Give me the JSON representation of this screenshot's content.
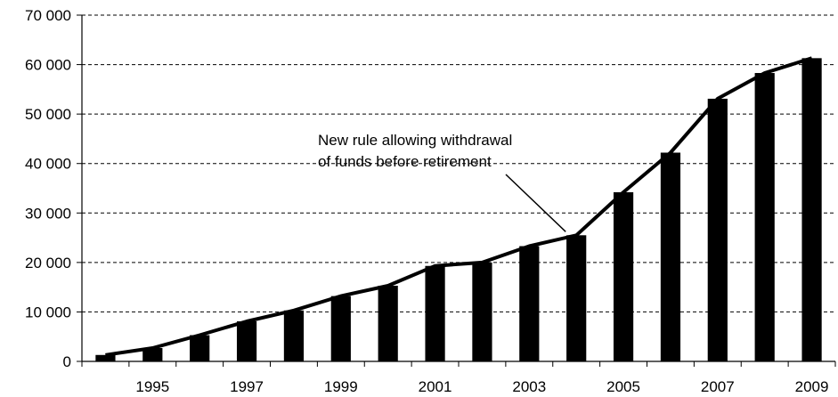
{
  "chart_data": {
    "type": "bar",
    "title": "",
    "xlabel": "",
    "ylabel": "",
    "ylim": [
      0,
      70000
    ],
    "yticks": [
      0,
      10000,
      20000,
      30000,
      40000,
      50000,
      60000,
      70000
    ],
    "ytick_labels": [
      "0",
      "10 000",
      "20 000",
      "30 000",
      "40 000",
      "50 000",
      "60 000",
      "70 000"
    ],
    "categories": [
      "1994",
      "1995",
      "1996",
      "1997",
      "1998",
      "1999",
      "2000",
      "2001",
      "2002",
      "2003",
      "2004",
      "2005",
      "2006",
      "2007",
      "2008",
      "2009"
    ],
    "xtick_labels_shown": [
      "1995",
      "1997",
      "1999",
      "2001",
      "2003",
      "2005",
      "2007",
      "2009"
    ],
    "series": [
      {
        "values": [
          1300,
          2700,
          5300,
          8100,
          10300,
          13200,
          15300,
          19300,
          20000,
          23300,
          25500,
          34200,
          42200,
          53100,
          58300,
          61300
        ],
        "style": "bar",
        "color": "#000000"
      },
      {
        "values": [
          1300,
          2700,
          5300,
          8100,
          10300,
          13200,
          15300,
          19300,
          20000,
          23300,
          25500,
          34200,
          42200,
          53100,
          58300,
          61300
        ],
        "style": "line",
        "color": "#000000"
      }
    ],
    "grid": "horizontal-dashed",
    "annotation": {
      "lines": [
        "New rule allowing withdrawal",
        "of funds before retirement"
      ],
      "points_to": "2004"
    }
  }
}
